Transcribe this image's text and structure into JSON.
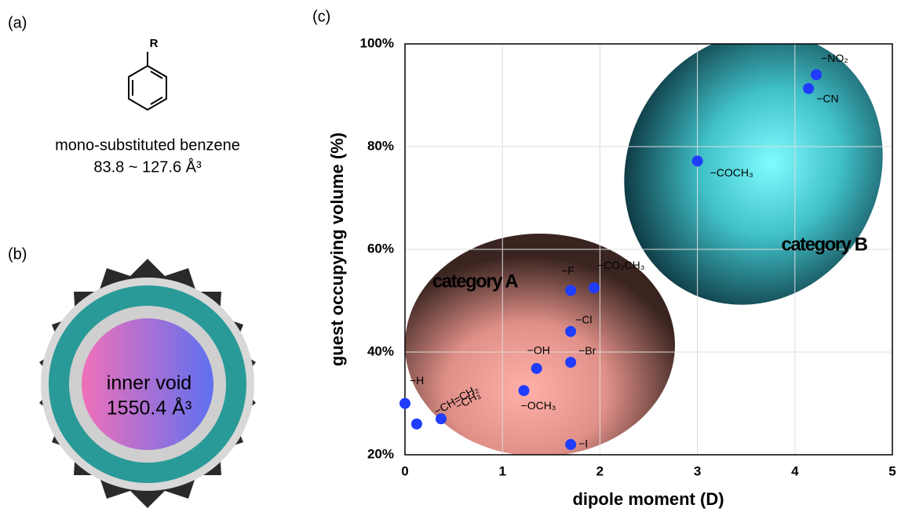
{
  "panel_a": {
    "label": "(a)",
    "substituent": "R",
    "caption": "mono-substituted benzene",
    "range": "83.8 ~ 127.6 Å³"
  },
  "panel_b": {
    "label": "(b)",
    "void_label": "inner void",
    "void_volume": "1550.4 Å³"
  },
  "chart_data": {
    "type": "scatter",
    "panel_label": "(c)",
    "xlabel": "dipole moment (D)",
    "ylabel": "guest occupying volume (%)",
    "xlim": [
      0,
      5
    ],
    "ylim": [
      20,
      100
    ],
    "xticks": [
      0,
      1,
      2,
      3,
      4,
      5
    ],
    "yticks": [
      {
        "value": 20,
        "label": "20%"
      },
      {
        "value": 40,
        "label": "40%"
      },
      {
        "value": 60,
        "label": "60%"
      },
      {
        "value": 80,
        "label": "80%"
      },
      {
        "value": 100,
        "label": "100%"
      }
    ],
    "grid": true,
    "color": "#1f3cff",
    "annotations": [
      "category A",
      "category B"
    ],
    "labels": [
      "−H",
      "−CH=CH₂",
      "−CH₃",
      "−OCH₃",
      "−OH",
      "−I",
      "−Br",
      "−Cl",
      "−F",
      "−CO₂CH₃",
      "−COCH₃",
      "−CN",
      "−NO₂"
    ],
    "x": [
      0,
      0.12,
      0.37,
      1.22,
      1.35,
      1.7,
      1.7,
      1.7,
      1.7,
      1.94,
      3.0,
      4.14,
      4.22
    ],
    "y": [
      30,
      26,
      27,
      32.5,
      36.8,
      22,
      38,
      44,
      52,
      52.5,
      77.2,
      91.3,
      94
    ]
  }
}
